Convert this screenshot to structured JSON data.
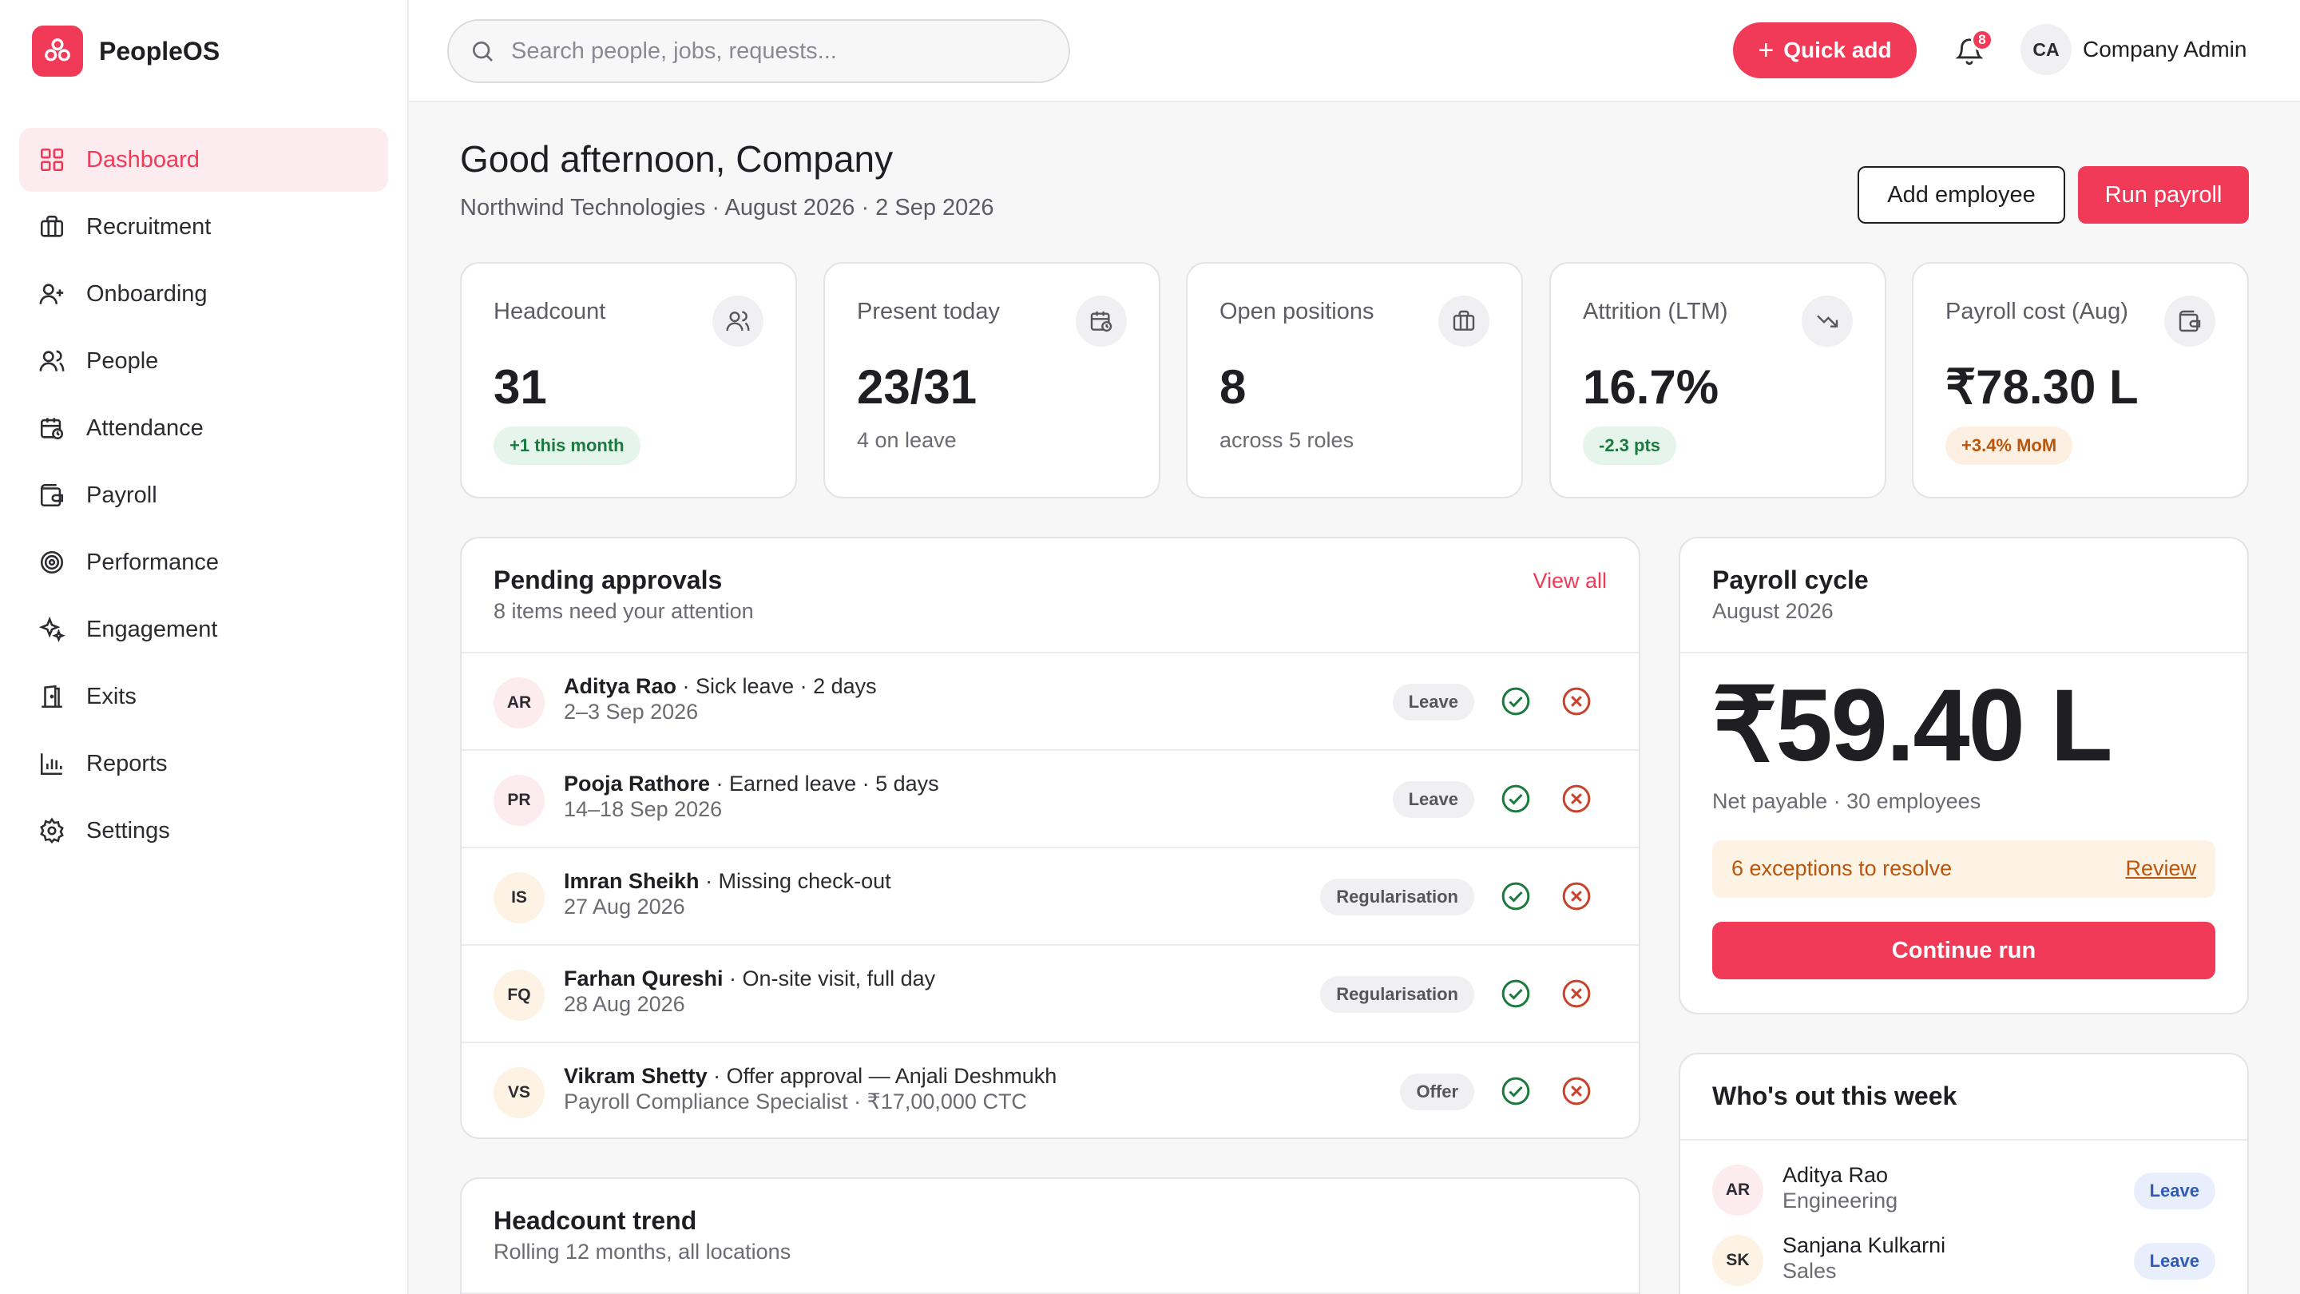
{
  "brand": {
    "name": "PeopleOS"
  },
  "nav": [
    {
      "label": "Dashboard",
      "icon": "grid-icon",
      "active": true
    },
    {
      "label": "Recruitment",
      "icon": "briefcase-icon"
    },
    {
      "label": "Onboarding",
      "icon": "user-plus-icon"
    },
    {
      "label": "People",
      "icon": "users-icon"
    },
    {
      "label": "Attendance",
      "icon": "calendar-clock-icon"
    },
    {
      "label": "Payroll",
      "icon": "wallet-icon"
    },
    {
      "label": "Performance",
      "icon": "target-icon"
    },
    {
      "label": "Engagement",
      "icon": "sparkles-icon"
    },
    {
      "label": "Exits",
      "icon": "door-icon"
    },
    {
      "label": "Reports",
      "icon": "bar-chart-icon"
    },
    {
      "label": "Settings",
      "icon": "gear-icon"
    }
  ],
  "topbar": {
    "search_placeholder": "Search people, jobs, requests...",
    "quick_add": "Quick add",
    "notifications_count": "8",
    "user_initials": "CA",
    "user_name": "Company Admin"
  },
  "header": {
    "greeting": "Good afternoon, Company",
    "subline": "Northwind Technologies · August 2026 · 2 Sep 2026",
    "add_employee": "Add employee",
    "run_payroll": "Run payroll"
  },
  "stats": [
    {
      "label": "Headcount",
      "value": "31",
      "badge": "+1 this month",
      "badge_tone": "green",
      "icon": "users-icon"
    },
    {
      "label": "Present today",
      "value": "23/31",
      "sub": "4 on leave",
      "icon": "calendar-clock-icon"
    },
    {
      "label": "Open positions",
      "value": "8",
      "sub": "across 5 roles",
      "icon": "briefcase-icon"
    },
    {
      "label": "Attrition (LTM)",
      "value": "16.7%",
      "badge": "-2.3 pts",
      "badge_tone": "green",
      "icon": "trending-down-icon"
    },
    {
      "label": "Payroll cost (Aug)",
      "value": "₹78.30 L",
      "badge": "+3.4% MoM",
      "badge_tone": "orange",
      "icon": "wallet-icon"
    }
  ],
  "approvals": {
    "title": "Pending approvals",
    "subtitle": "8 items need your attention",
    "view_all": "View all",
    "rows": [
      {
        "initials": "AR",
        "name": "Aditya Rao",
        "detail": " · Sick leave · 2 days",
        "date": "2–3 Sep 2026",
        "tag": "Leave"
      },
      {
        "initials": "PR",
        "name": "Pooja Rathore",
        "detail": " · Earned leave · 5 days",
        "date": "14–18 Sep 2026",
        "tag": "Leave"
      },
      {
        "initials": "IS",
        "name": "Imran Sheikh",
        "detail": " · Missing check-out",
        "date": "27 Aug 2026",
        "tag": "Regularisation"
      },
      {
        "initials": "FQ",
        "name": "Farhan Qureshi",
        "detail": " · On-site visit, full day",
        "date": "28 Aug 2026",
        "tag": "Regularisation"
      },
      {
        "initials": "VS",
        "name": "Vikram Shetty",
        "detail": " · Offer approval — Anjali Deshmukh",
        "date": "Payroll Compliance Specialist · ₹17,00,000 CTC",
        "tag": "Offer"
      }
    ]
  },
  "payroll_cycle": {
    "title": "Payroll cycle",
    "period": "August 2026",
    "amount": "₹59.40 L",
    "net": "Net payable · 30 employees",
    "exceptions": "6 exceptions to resolve",
    "review": "Review",
    "continue": "Continue run"
  },
  "headcount_trend": {
    "title": "Headcount trend",
    "subtitle": "Rolling 12 months, all locations"
  },
  "whos_out": {
    "title": "Who's out this week",
    "rows": [
      {
        "initials": "AR",
        "name": "Aditya Rao",
        "dept": "Engineering",
        "tag": "Leave"
      },
      {
        "initials": "SK",
        "name": "Sanjana Kulkarni",
        "dept": "Sales",
        "tag": "Leave"
      }
    ]
  },
  "colors": {
    "accent": "#f03a58",
    "success": "#1b7a3d",
    "danger": "#c8432b",
    "warning": "#b9560c"
  }
}
